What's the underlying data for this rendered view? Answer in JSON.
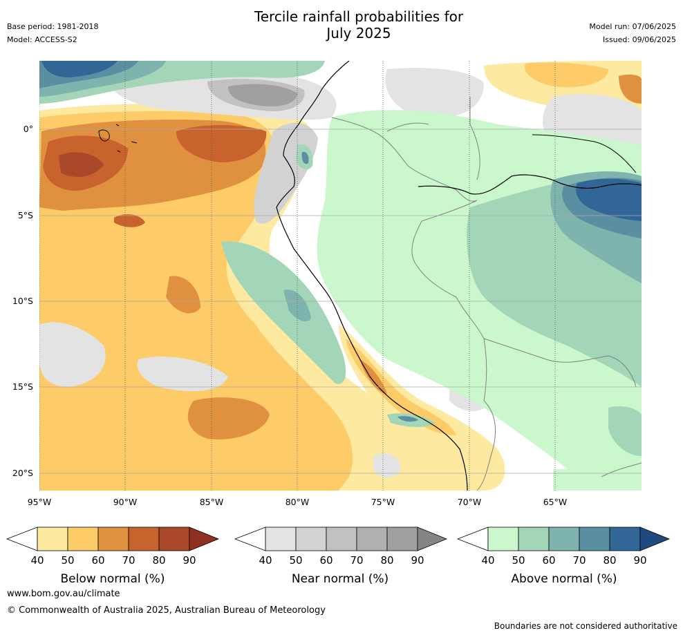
{
  "header": {
    "title_line1": "Tercile rainfall probabilities for",
    "title_line2": "July 2025",
    "base_period": "Base period: 1981-2018",
    "model": "Model: ACCESS-S2",
    "model_run": "Model run: 07/06/2025",
    "issued": "Issued: 09/06/2025"
  },
  "map": {
    "lat_labels": [
      "0°",
      "5°S",
      "10°S",
      "15°S",
      "20°S"
    ],
    "lon_labels": [
      "95°W",
      "90°W",
      "85°W",
      "80°W",
      "75°W",
      "70°W",
      "65°W"
    ],
    "region": "Northwestern South America and eastern Pacific",
    "colors": {
      "below": [
        "#fdeaa0",
        "#fdcb67",
        "#e0913f",
        "#c8632e",
        "#a9492a",
        "#8e3020"
      ],
      "near": [
        "#e3e3e3",
        "#d2d2d2",
        "#c1c1c1",
        "#b0b0b0",
        "#a0a0a0",
        "#858585"
      ],
      "above": [
        "#caf8cc",
        "#a3d6b8",
        "#7fb3ad",
        "#5a8fa2",
        "#316696",
        "#1e4a80"
      ]
    }
  },
  "legends": [
    {
      "title": "Below normal (%)",
      "ticks": [
        "40",
        "50",
        "60",
        "70",
        "80",
        "90"
      ]
    },
    {
      "title": "Near normal (%)",
      "ticks": [
        "40",
        "50",
        "60",
        "70",
        "80",
        "90"
      ]
    },
    {
      "title": "Above normal (%)",
      "ticks": [
        "40",
        "50",
        "60",
        "70",
        "80",
        "90"
      ]
    }
  ],
  "footer": {
    "website": "www.bom.gov.au/climate",
    "copyright": "© Commonwealth of Australia 2025, Australian Bureau of Meteorology",
    "disclaimer": "Boundaries are not considered authoritative"
  }
}
